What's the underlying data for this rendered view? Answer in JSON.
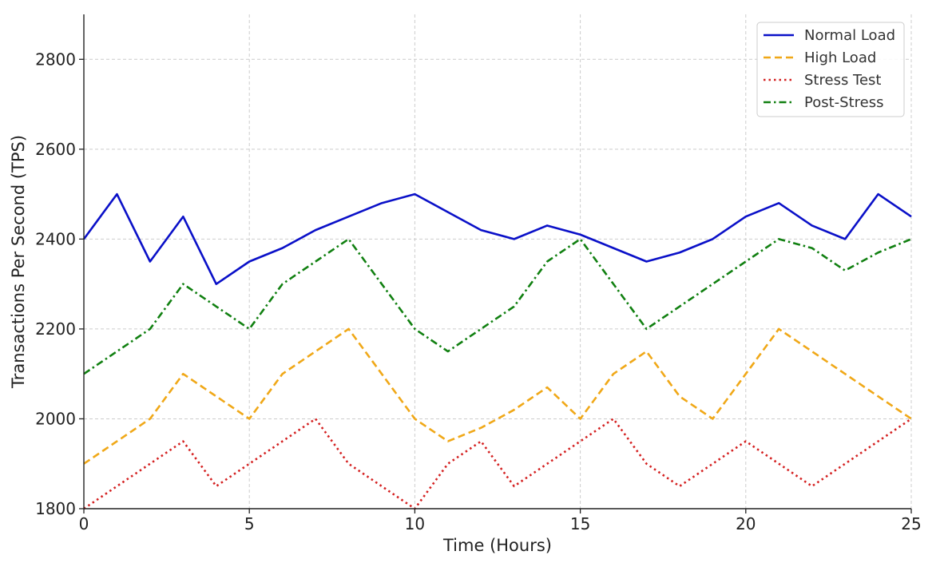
{
  "chart_data": {
    "type": "line",
    "title": "",
    "xlabel": "Time (Hours)",
    "ylabel": "Transactions Per Second (TPS)",
    "xlim": [
      0,
      25
    ],
    "ylim": [
      1800,
      2900
    ],
    "x_ticks": [
      0,
      5,
      10,
      15,
      20,
      25
    ],
    "y_ticks": [
      1800,
      2000,
      2200,
      2400,
      2600,
      2800
    ],
    "grid": true,
    "legend_position": "top-right",
    "x": [
      0,
      1,
      2,
      3,
      4,
      5,
      6,
      7,
      8,
      9,
      10,
      11,
      12,
      13,
      14,
      15,
      16,
      17,
      18,
      19,
      20,
      21,
      22,
      23,
      24,
      25
    ],
    "series": [
      {
        "name": "Normal Load",
        "color": "#0a10c8",
        "line_style": "solid",
        "values": [
          2400,
          2500,
          2350,
          2450,
          2300,
          2350,
          2380,
          2420,
          2450,
          2480,
          2500,
          2460,
          2420,
          2400,
          2430,
          2410,
          2380,
          2350,
          2370,
          2400,
          2450,
          2480,
          2430,
          2400,
          2500,
          2450
        ]
      },
      {
        "name": "High Load",
        "color": "#f0a818",
        "line_style": "dashed",
        "values": [
          1900,
          1950,
          2000,
          2100,
          2050,
          2000,
          2100,
          2150,
          2200,
          2100,
          2000,
          1950,
          1980,
          2020,
          2070,
          2000,
          2100,
          2150,
          2050,
          2000,
          2100,
          2200,
          2150,
          2100,
          2050,
          2000
        ]
      },
      {
        "name": "Stress Test",
        "color": "#d42020",
        "line_style": "dotted",
        "values": [
          1800,
          1850,
          1900,
          1950,
          1850,
          1900,
          1950,
          2000,
          1900,
          1850,
          1800,
          1900,
          1950,
          1850,
          1900,
          1950,
          2000,
          1900,
          1850,
          1900,
          1950,
          1900,
          1850,
          1900,
          1950,
          2000
        ]
      },
      {
        "name": "Post-Stress",
        "color": "#118011",
        "line_style": "dashdot",
        "values": [
          2100,
          2150,
          2200,
          2300,
          2250,
          2200,
          2300,
          2350,
          2400,
          2300,
          2200,
          2150,
          2200,
          2250,
          2350,
          2400,
          2300,
          2200,
          2250,
          2300,
          2350,
          2400,
          2380,
          2330,
          2370,
          2400
        ]
      }
    ]
  }
}
